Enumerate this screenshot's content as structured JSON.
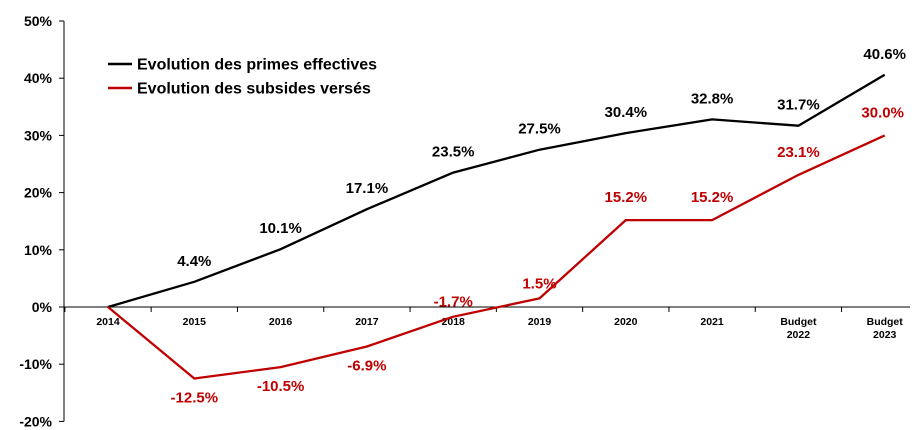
{
  "chart_data": {
    "type": "line",
    "categories": [
      [
        "2014"
      ],
      [
        "2015"
      ],
      [
        "2016"
      ],
      [
        "2017"
      ],
      [
        "2018"
      ],
      [
        "2019"
      ],
      [
        "2020"
      ],
      [
        "2021"
      ],
      [
        "Budget",
        "2022"
      ],
      [
        "Budget",
        "2023"
      ]
    ],
    "series": [
      {
        "name": "Evolution des primes effectives",
        "color": "#000000",
        "values": [
          0.0,
          4.4,
          10.1,
          17.1,
          23.5,
          27.5,
          30.4,
          32.8,
          31.7,
          40.6
        ],
        "labels": [
          "",
          "4.4%",
          "10.1%",
          "17.1%",
          "23.5%",
          "27.5%",
          "30.4%",
          "32.8%",
          "31.7%",
          "40.6%"
        ]
      },
      {
        "name": "Evolution des subsides versés",
        "color": "#c00000",
        "values": [
          0.0,
          -12.5,
          -10.5,
          -6.9,
          -1.7,
          1.5,
          15.2,
          15.2,
          23.1,
          30.0
        ],
        "labels": [
          "",
          "-12.5%",
          "-10.5%",
          "-6.9%",
          "-1.7%",
          "1.5%",
          "15.2%",
          "15.2%",
          "23.1%",
          "30.0%"
        ]
      }
    ],
    "yticks": [
      "-20%",
      "-10%",
      "0%",
      "10%",
      "20%",
      "30%",
      "40%",
      "50%"
    ],
    "ytick_values": [
      -20,
      -10,
      0,
      10,
      20,
      30,
      40,
      50
    ],
    "ylim": [
      -20,
      50
    ],
    "legend": "top-left",
    "grid": false
  }
}
